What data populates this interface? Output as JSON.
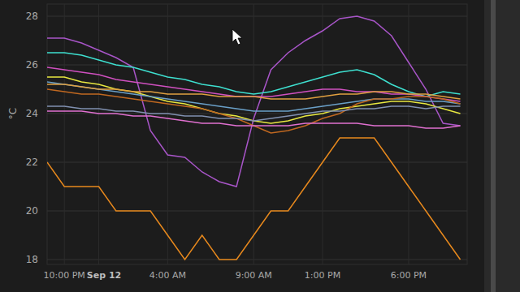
{
  "chart_data": {
    "type": "line",
    "ylabel": "°C",
    "x": [
      -3,
      -2,
      -1,
      0,
      1,
      2,
      3,
      4,
      5,
      6,
      7,
      8,
      9,
      10,
      11,
      12,
      13,
      14,
      15,
      16,
      17,
      18,
      19,
      20,
      21
    ],
    "xlim": [
      -3,
      21.4
    ],
    "xticks": [
      {
        "value": -2,
        "label": "10:00 PM"
      },
      {
        "value": 0,
        "label": "Sep 12"
      },
      {
        "value": 4,
        "label": "4:00 AM"
      },
      {
        "value": 9,
        "label": "9:00 AM"
      },
      {
        "value": 13,
        "label": "1:00 PM"
      },
      {
        "value": 18,
        "label": "6:00 PM"
      }
    ],
    "ylim": [
      17.8,
      28.5
    ],
    "yticks": [
      18,
      20,
      22,
      24,
      26,
      28
    ],
    "grid": true,
    "series": [
      {
        "color": "#e8891d",
        "values": [
          22,
          21,
          21,
          21,
          20,
          20,
          20,
          19,
          18,
          19,
          18,
          18,
          19,
          20,
          20,
          21,
          22,
          23,
          23,
          23,
          22,
          21,
          20,
          19,
          18
        ]
      },
      {
        "color": "#a855c8",
        "values": [
          27.1,
          27.1,
          26.9,
          26.6,
          26.3,
          25.9,
          23.3,
          22.3,
          22.2,
          21.6,
          21.2,
          21.0,
          23.8,
          25.8,
          26.5,
          27.0,
          27.4,
          27.9,
          28.0,
          27.8,
          27.2,
          26.1,
          25.0,
          23.6,
          23.5
        ]
      },
      {
        "color": "#3ee0d0",
        "values": [
          26.5,
          26.5,
          26.4,
          26.2,
          26.0,
          25.9,
          25.7,
          25.5,
          25.4,
          25.2,
          25.1,
          24.9,
          24.8,
          24.9,
          25.1,
          25.3,
          25.5,
          25.7,
          25.8,
          25.6,
          25.2,
          24.9,
          24.7,
          24.9,
          24.8
        ]
      },
      {
        "color": "#d050c0",
        "values": [
          25.9,
          25.8,
          25.7,
          25.6,
          25.4,
          25.3,
          25.2,
          25.1,
          25.0,
          24.9,
          24.8,
          24.7,
          24.7,
          24.7,
          24.8,
          24.9,
          25.0,
          25.0,
          24.9,
          24.9,
          24.8,
          24.8,
          24.7,
          24.6,
          24.5
        ]
      },
      {
        "color": "#e8e840",
        "values": [
          25.5,
          25.5,
          25.3,
          25.2,
          25.0,
          24.9,
          24.7,
          24.5,
          24.4,
          24.2,
          24.0,
          23.9,
          23.7,
          23.6,
          23.7,
          23.9,
          24.0,
          24.2,
          24.3,
          24.4,
          24.5,
          24.5,
          24.4,
          24.2,
          24.0
        ]
      },
      {
        "color": "#6aa0c8",
        "values": [
          25.3,
          25.2,
          25.1,
          25.0,
          24.9,
          24.8,
          24.7,
          24.6,
          24.5,
          24.4,
          24.3,
          24.2,
          24.1,
          24.1,
          24.1,
          24.2,
          24.3,
          24.4,
          24.5,
          24.6,
          24.6,
          24.6,
          24.5,
          24.5,
          24.4
        ]
      },
      {
        "color": "#c06820",
        "values": [
          25.0,
          24.9,
          24.8,
          24.8,
          24.7,
          24.6,
          24.5,
          24.4,
          24.3,
          24.2,
          24.0,
          23.8,
          23.5,
          23.2,
          23.3,
          23.5,
          23.8,
          24.0,
          24.4,
          24.6,
          24.6,
          24.7,
          24.7,
          24.6,
          24.4
        ]
      },
      {
        "color": "#e0a040",
        "values": [
          25.2,
          25.2,
          25.1,
          25.0,
          25.0,
          24.9,
          24.9,
          24.8,
          24.8,
          24.8,
          24.7,
          24.7,
          24.7,
          24.6,
          24.6,
          24.6,
          24.7,
          24.8,
          24.8,
          24.9,
          24.9,
          24.8,
          24.8,
          24.7,
          24.6
        ]
      },
      {
        "color": "#e070d0",
        "values": [
          24.1,
          24.1,
          24.1,
          24.0,
          24.0,
          23.9,
          23.9,
          23.8,
          23.7,
          23.6,
          23.6,
          23.5,
          23.5,
          23.5,
          23.5,
          23.6,
          23.6,
          23.6,
          23.6,
          23.5,
          23.5,
          23.5,
          23.4,
          23.4,
          23.5
        ]
      },
      {
        "color": "#8090b0",
        "values": [
          24.3,
          24.3,
          24.2,
          24.2,
          24.1,
          24.1,
          24.0,
          24.0,
          23.9,
          23.9,
          23.8,
          23.8,
          23.7,
          23.8,
          23.9,
          24.0,
          24.1,
          24.1,
          24.2,
          24.2,
          24.3,
          24.3,
          24.2,
          24.3,
          24.3
        ]
      }
    ]
  }
}
